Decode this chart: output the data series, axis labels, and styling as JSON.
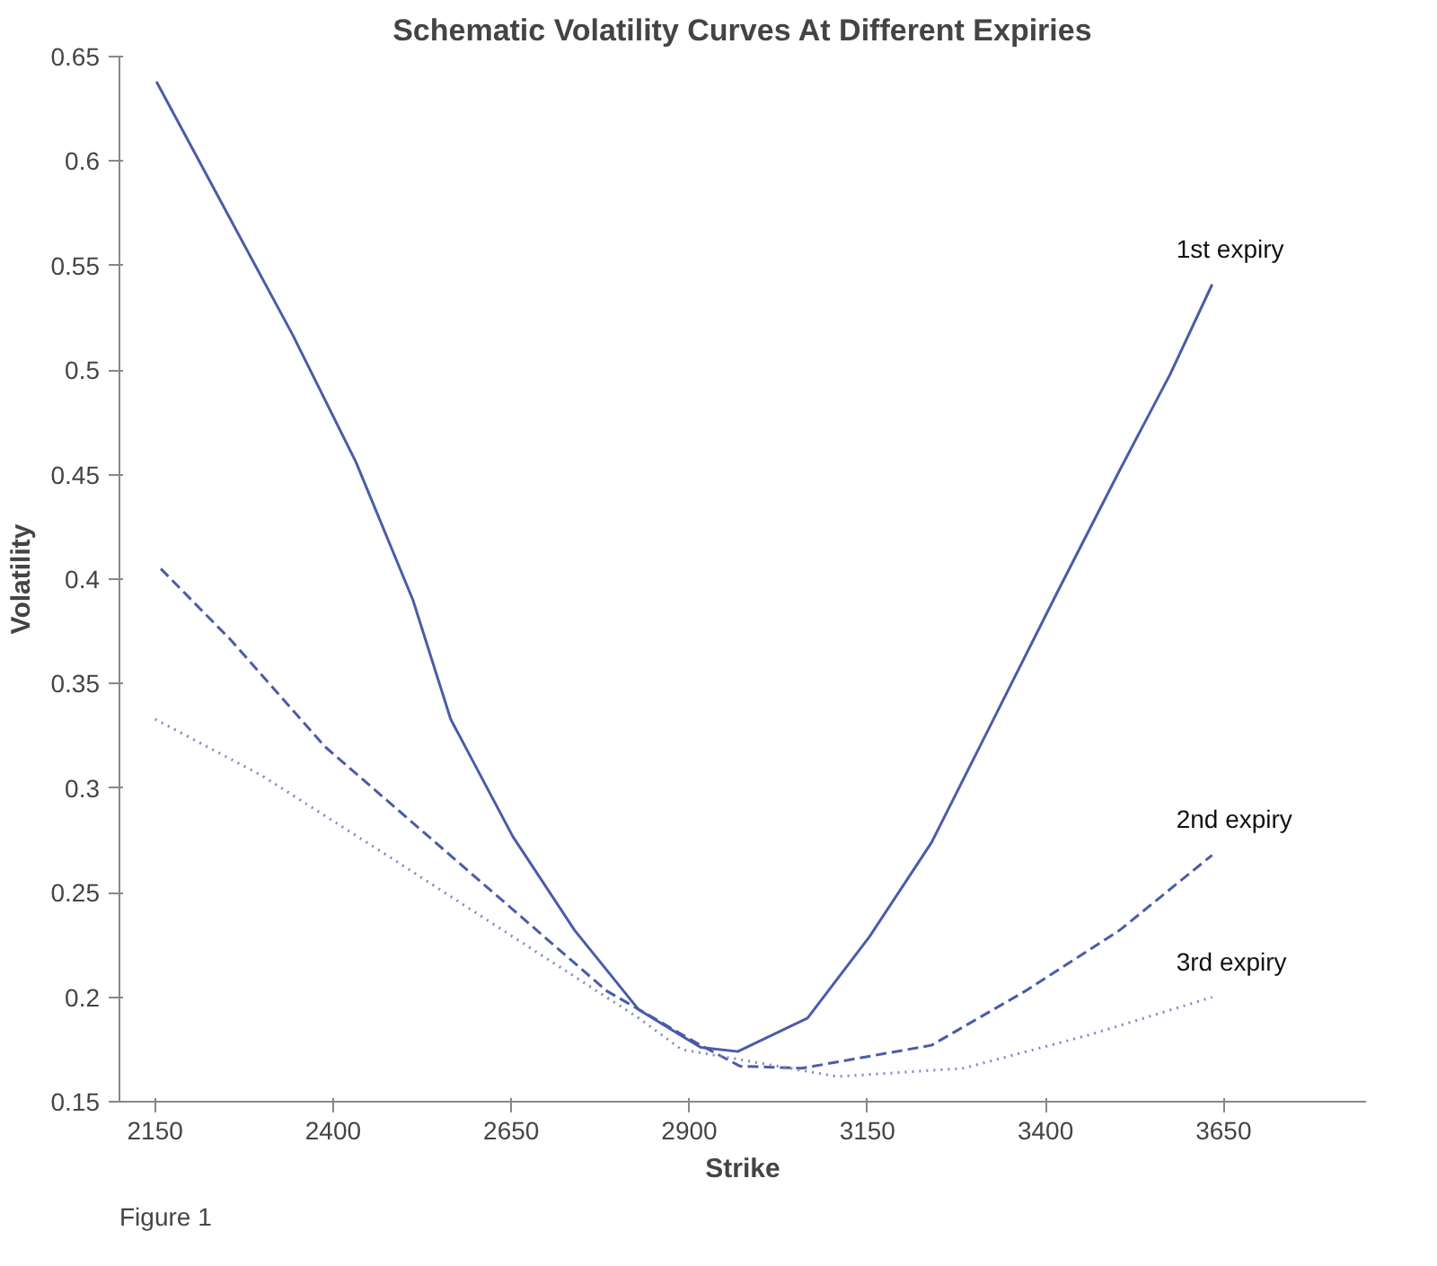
{
  "chart_data": {
    "type": "line",
    "title": "Schematic Volatility Curves At Different Expiries",
    "xlabel": "Strike",
    "ylabel": "Volatility",
    "xlim": [
      2100,
      3850
    ],
    "xticks": [
      2150,
      2400,
      2650,
      2900,
      3150,
      3400,
      3650
    ],
    "ylim": [
      0.15,
      0.65
    ],
    "yticks": [
      0.15,
      0.2,
      0.25,
      0.3,
      0.35,
      0.4,
      0.45,
      0.5,
      0.55,
      0.6,
      0.65
    ],
    "grid": false,
    "legend": false,
    "marker": "none",
    "annotations": [
      "Figure 1"
    ],
    "series": [
      {
        "name": "1st expiry",
        "color": "#4a5ca8",
        "line_style": "solid",
        "x": [
          2152,
          2256,
          2343,
          2432,
          2512,
          2565,
          2652,
          2739,
          2829,
          2916,
          2968,
          3066,
          3153,
          3240,
          3330,
          3417,
          3504,
          3575,
          3634
        ],
        "values": [
          0.638,
          0.572,
          0.517,
          0.456,
          0.39,
          0.333,
          0.277,
          0.232,
          0.194,
          0.176,
          0.174,
          0.19,
          0.229,
          0.274,
          0.335,
          0.394,
          0.452,
          0.498,
          0.541
        ]
      },
      {
        "name": "2nd expiry",
        "color": "#4a5ca8",
        "line_style": "dashed",
        "x": [
          2158,
          2256,
          2388,
          2520,
          2652,
          2784,
          2916,
          2971,
          3058,
          3240,
          3372,
          3504,
          3634
        ],
        "values": [
          0.405,
          0.371,
          0.32,
          0.281,
          0.242,
          0.203,
          0.177,
          0.167,
          0.166,
          0.177,
          0.203,
          0.232,
          0.268
        ]
      },
      {
        "name": "3rd expiry",
        "color": "#7f88c4",
        "line_style": "dotted",
        "x": [
          2150,
          2300,
          2475,
          2652,
          2829,
          2889,
          3108,
          3285,
          3462,
          3634
        ],
        "values": [
          0.333,
          0.306,
          0.268,
          0.229,
          0.19,
          0.175,
          0.162,
          0.166,
          0.182,
          0.2
        ]
      }
    ]
  }
}
